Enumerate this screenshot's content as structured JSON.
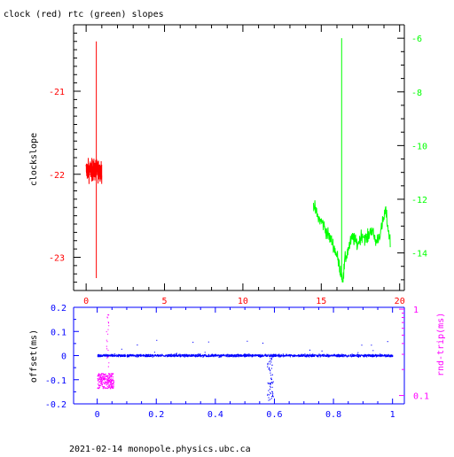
{
  "chart_data": [
    {
      "type": "line",
      "title": "clock (red) rtc (green) slopes",
      "xlabel": "",
      "ylabel": "clockslope",
      "xlim": [
        -0.8,
        20.3
      ],
      "ylim": [
        -23.4,
        -20.2
      ],
      "x_ticks": [
        "0",
        "5",
        "10",
        "15",
        "20"
      ],
      "y_ticks": [
        "-21",
        "-22",
        "-23"
      ],
      "y2lim": [
        -15.4,
        -5.5
      ],
      "y2_ticks": [
        "-6",
        "-8",
        "-10",
        "-12",
        "-14"
      ],
      "colors": {
        "clock": "#ff0000",
        "rtc": "#00ff00",
        "axis": "#000000"
      },
      "series": [
        {
          "name": "clock",
          "color": "#ff0000",
          "axis": "left",
          "x": [
            0.0,
            0.1,
            0.2,
            0.3,
            0.4,
            0.5,
            0.6,
            0.65,
            0.7,
            0.75,
            0.8,
            0.9,
            1.0
          ],
          "y": [
            -21.9,
            -22.05,
            -21.85,
            -22.1,
            -21.9,
            -22.0,
            -21.85,
            -20.4,
            -23.25,
            -22.0,
            -21.9,
            -22.1,
            -21.95
          ]
        },
        {
          "name": "rtc",
          "color": "#00ff00",
          "axis": "right",
          "x": [
            14.5,
            14.8,
            15.1,
            15.4,
            15.7,
            16.0,
            16.2,
            16.3,
            16.4,
            16.5,
            16.7,
            17.0,
            17.3,
            17.6,
            17.9,
            18.2,
            18.5,
            18.8,
            19.1,
            19.4
          ],
          "y": [
            -12.2,
            -12.7,
            -12.9,
            -13.3,
            -13.6,
            -14.1,
            -14.6,
            -6.0,
            -15.0,
            -14.3,
            -13.9,
            -13.4,
            -13.7,
            -13.3,
            -13.5,
            -13.1,
            -13.6,
            -13.2,
            -12.4,
            -13.6
          ]
        }
      ]
    },
    {
      "type": "scatter",
      "title": "",
      "xlabel": "",
      "ylabel": "offset(ms)",
      "y2label": "rnd-trip(ms)",
      "xlim": [
        -0.08,
        1.04
      ],
      "ylim": [
        -0.2,
        0.2
      ],
      "x_ticks": [
        "0",
        "0.2",
        "0.4",
        "0.6",
        "0.8",
        "1"
      ],
      "y_ticks": [
        "0.2",
        "0.1",
        "0",
        "-0.1",
        "-0.2"
      ],
      "y2_scale": "log",
      "y2lim": [
        0.08,
        1.05
      ],
      "y2_ticks": [
        "1",
        "0.1"
      ],
      "colors": {
        "offset": "#0000ff",
        "rndtrip": "#ff00ff",
        "axis": "#0000ff"
      },
      "series": [
        {
          "name": "offset",
          "color": "#0000ff",
          "axis": "left",
          "x": [
            0.0,
            0.05,
            0.1,
            0.2,
            0.3,
            0.4,
            0.5,
            0.56,
            0.57,
            0.58,
            0.59,
            0.6,
            0.7,
            0.8,
            0.9,
            1.0
          ],
          "y": [
            0.0,
            0.005,
            -0.005,
            0.0,
            0.005,
            0.0,
            -0.005,
            -0.01,
            -0.08,
            -0.18,
            -0.12,
            -0.02,
            0.0,
            0.005,
            0.0,
            0.0
          ]
        },
        {
          "name": "rnd-trip",
          "color": "#ff00ff",
          "axis": "right",
          "x": [
            0.0,
            0.01,
            0.02,
            0.03,
            0.035,
            0.04,
            0.05
          ],
          "y": [
            0.14,
            0.17,
            0.13,
            0.15,
            0.85,
            0.16,
            0.14
          ]
        }
      ]
    }
  ],
  "footer": "2021-02-14 monopole.physics.ubc.ca"
}
